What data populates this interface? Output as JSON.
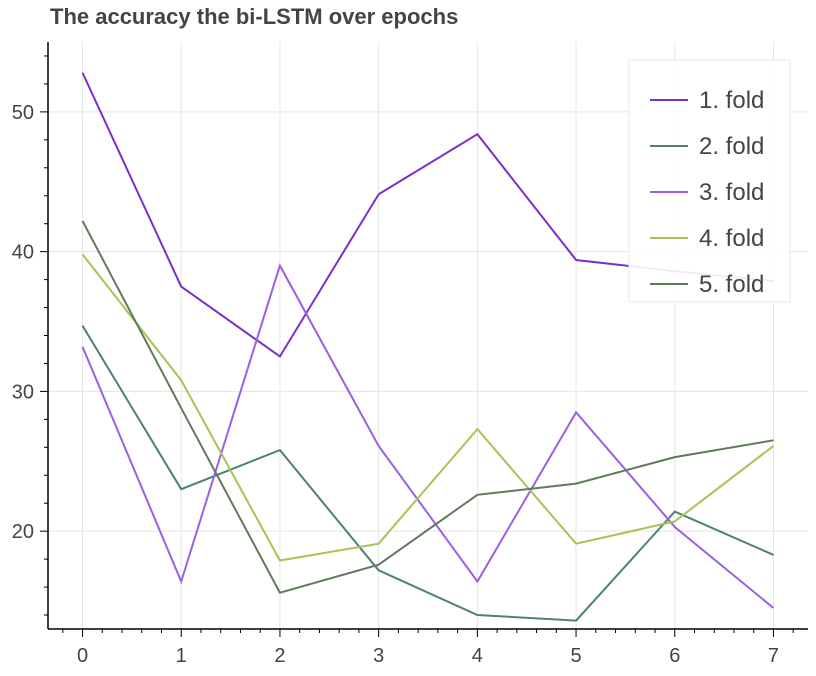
{
  "chart_data": {
    "type": "line",
    "title": "The accuracy the bi-LSTM over epochs",
    "xlabel": "",
    "ylabel": "",
    "x": [
      0,
      1,
      2,
      3,
      4,
      5,
      6,
      7
    ],
    "xlim": [
      -0.35,
      7.35
    ],
    "ylim": [
      13,
      55
    ],
    "x_ticks": [
      0,
      1,
      2,
      3,
      4,
      5,
      6,
      7
    ],
    "y_ticks": [
      20,
      30,
      40,
      50
    ],
    "grid": true,
    "legend_position": "top-right",
    "series": [
      {
        "name": "1. fold",
        "color": "#7b2fc9",
        "values": [
          52.8,
          37.5,
          32.5,
          44.1,
          48.4,
          39.4,
          38.6,
          37.9
        ]
      },
      {
        "name": "2. fold",
        "color": "#4f7f7b",
        "values": [
          34.7,
          23.0,
          25.8,
          17.2,
          14.0,
          13.6,
          21.4,
          18.3
        ]
      },
      {
        "name": "3. fold",
        "color": "#9a5fe6",
        "values": [
          33.2,
          16.4,
          39.0,
          26.1,
          16.4,
          28.5,
          20.3,
          14.5
        ]
      },
      {
        "name": "4. fold",
        "color": "#a5c456",
        "values": [
          39.8,
          30.8,
          17.9,
          19.1,
          27.3,
          19.1,
          20.7,
          26.1
        ]
      },
      {
        "name": "5. fold",
        "color": "#617a5c",
        "values": [
          42.2,
          28.8,
          15.6,
          17.6,
          22.6,
          23.4,
          25.3,
          26.5
        ]
      }
    ]
  }
}
